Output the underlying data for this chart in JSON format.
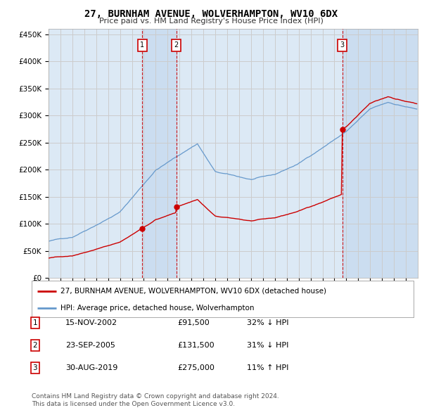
{
  "title": "27, BURNHAM AVENUE, WOLVERHAMPTON, WV10 6DX",
  "subtitle": "Price paid vs. HM Land Registry's House Price Index (HPI)",
  "background_color": "#ffffff",
  "grid_color": "#cccccc",
  "plot_bg": "#dce9f5",
  "shade_color": "#c5d8ee",
  "red_color": "#cc0000",
  "blue_color": "#6699cc",
  "ylim": [
    0,
    460000
  ],
  "yticks": [
    0,
    50000,
    100000,
    150000,
    200000,
    250000,
    300000,
    350000,
    400000,
    450000
  ],
  "ytick_labels": [
    "£0",
    "£50K",
    "£100K",
    "£150K",
    "£200K",
    "£250K",
    "£300K",
    "£350K",
    "£400K",
    "£450K"
  ],
  "sale_prices": [
    91500,
    131500,
    275000
  ],
  "sale_labels": [
    "1",
    "2",
    "3"
  ],
  "legend_red": "27, BURNHAM AVENUE, WOLVERHAMPTON, WV10 6DX (detached house)",
  "legend_blue": "HPI: Average price, detached house, Wolverhampton",
  "table_rows": [
    [
      "1",
      "15-NOV-2002",
      "£91,500",
      "32% ↓ HPI"
    ],
    [
      "2",
      "23-SEP-2005",
      "£131,500",
      "31% ↓ HPI"
    ],
    [
      "3",
      "30-AUG-2019",
      "£275,000",
      "11% ↑ HPI"
    ]
  ],
  "footer": "Contains HM Land Registry data © Crown copyright and database right 2024.\nThis data is licensed under the Open Government Licence v3.0.",
  "vline_color": "#cc0000"
}
